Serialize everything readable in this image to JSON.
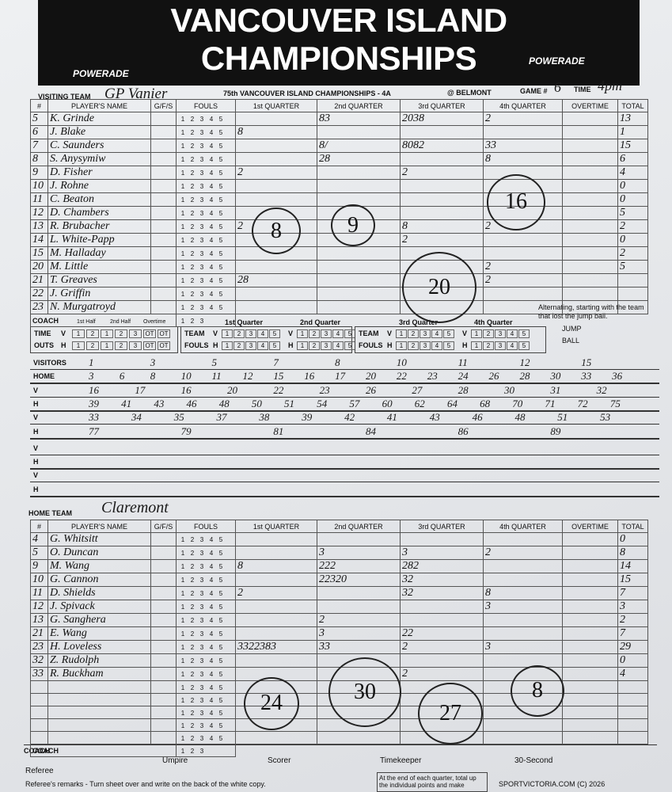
{
  "header": {
    "title_line1": "VANCOUVER ISLAND",
    "title_line2": "CHAMPIONSHIPS",
    "sponsor": "POWERADE"
  },
  "game": {
    "subtitle": "75th VANCOUVER ISLAND CHAMPIONSHIPS - 4A",
    "venue": "@ BELMONT",
    "game_label": "GAME #",
    "game_number": "6",
    "time_label": "TIME",
    "time": "4pm"
  },
  "columns": [
    "#",
    "PLAYER'S NAME",
    "G/F/S",
    "FOULS",
    "1st QUARTER",
    "2nd QUARTER",
    "3rd QUARTER",
    "4th QUARTER",
    "OVERTIME",
    "TOTAL"
  ],
  "foul_numbers": [
    "1",
    "2",
    "3",
    "4",
    "5"
  ],
  "coach_label": "COACH",
  "visiting": {
    "label": "VISITING TEAM",
    "team": "GP Vanier",
    "players": [
      {
        "number": "5",
        "name": "K. Grinde",
        "q2": "83",
        "q3": "2038",
        "q4": "2",
        "total": 13
      },
      {
        "number": "6",
        "name": "J. Blake",
        "q1": "8",
        "total": 1
      },
      {
        "number": "7",
        "name": "C. Saunders",
        "q2": "8/",
        "q3": "8082",
        "q4": "33",
        "total": 15
      },
      {
        "number": "8",
        "name": "S. Anysymiw",
        "q2": "28",
        "q4": "8",
        "total": 6
      },
      {
        "number": "9",
        "name": "D. Fisher",
        "q1": "2",
        "q3": "2",
        "total": 4
      },
      {
        "number": "10",
        "name": "J. Rohne",
        "total": 0
      },
      {
        "number": "11",
        "name": "C. Beaton",
        "total": 0
      },
      {
        "number": "12",
        "name": "D. Chambers",
        "total": 5
      },
      {
        "number": "13",
        "name": "R. Brubacher",
        "q1": "2",
        "q3": "8",
        "q4": "2",
        "total": 2
      },
      {
        "number": "14",
        "name": "L. White-Papp",
        "q3": "2",
        "total": 0
      },
      {
        "number": "15",
        "name": "M. Halladay",
        "total": 2
      },
      {
        "number": "20",
        "name": "M. Little",
        "q4": "2",
        "total": 5
      },
      {
        "number": "21",
        "name": "T. Greaves",
        "q1": "28",
        "q4": "2"
      },
      {
        "number": "22",
        "name": "J. Griffin"
      },
      {
        "number": "23",
        "name": "N. Murgatroyd"
      }
    ],
    "quarter_totals": [
      8,
      9,
      20,
      16
    ]
  },
  "timeouts": {
    "label_top": "TIME",
    "label_bottom": "OUTS",
    "periods": [
      "1st Half",
      "2nd Half",
      "Overtime"
    ],
    "teams": [
      "V",
      "H"
    ],
    "slots": [
      "1",
      "2",
      "1",
      "2",
      "3",
      "OT",
      "OT"
    ]
  },
  "team_fouls": {
    "label_top": "TEAM",
    "label_bottom": "FOULS",
    "quarters": [
      "1st Quarter",
      "2nd Quarter",
      "3rd Quarter",
      "4th Quarter"
    ],
    "teams": [
      "V",
      "H"
    ]
  },
  "jump_ball": {
    "note": "Alternating, starting with the team that lost the jump ball.",
    "label_top": "JUMP",
    "label_bottom": "BALL"
  },
  "running_score": [
    {
      "label": "VISITORS",
      "entries": [
        "1",
        "3",
        "5",
        "7",
        "8",
        "10",
        "11",
        "12",
        "15"
      ]
    },
    {
      "label": "HOME",
      "entries": [
        "3",
        "6",
        "8",
        "10",
        "11",
        "12",
        "15",
        "16",
        "17",
        "20",
        "22",
        "23",
        "24",
        "26",
        "28",
        "30",
        "33",
        "36"
      ]
    },
    {
      "label": "V",
      "entries": [
        "16",
        "17",
        "16",
        "20",
        "22",
        "23",
        "26",
        "27",
        "28",
        "30",
        "31",
        "32"
      ]
    },
    {
      "label": "H",
      "entries": [
        "39",
        "41",
        "43",
        "46",
        "48",
        "50",
        "51",
        "54",
        "57",
        "60",
        "62",
        "64",
        "68",
        "70",
        "71",
        "72",
        "75"
      ]
    },
    {
      "label": "V",
      "entries": [
        "33",
        "34",
        "35",
        "37",
        "38",
        "39",
        "42",
        "41",
        "43",
        "46",
        "48",
        "51",
        "53"
      ]
    },
    {
      "label": "H",
      "entries": [
        "77",
        "79",
        "81",
        "84",
        "86",
        "89"
      ]
    },
    {
      "label": "V",
      "entries": []
    },
    {
      "label": "H",
      "entries": []
    },
    {
      "label": "V",
      "entries": []
    },
    {
      "label": "H",
      "entries": []
    }
  ],
  "home": {
    "label": "HOME TEAM",
    "team": "Claremont",
    "players": [
      {
        "number": "4",
        "name": "G. Whitsitt",
        "total": 0
      },
      {
        "number": "5",
        "name": "O. Duncan",
        "q2": "3",
        "q3": "3",
        "q4": "2",
        "total": 8
      },
      {
        "number": "9",
        "name": "M. Wang",
        "q1": "8",
        "q2": "222",
        "q3": "282",
        "total": 14
      },
      {
        "number": "10",
        "name": "G. Cannon",
        "q2": "22320",
        "q3": "32",
        "total": 15
      },
      {
        "number": "11",
        "name": "D. Shields",
        "q1": "2",
        "q3": "32",
        "q4": "8",
        "total": 7
      },
      {
        "number": "12",
        "name": "J. Spivack",
        "q4": "3",
        "total": 3
      },
      {
        "number": "13",
        "name": "G. Sanghera",
        "q2": "2",
        "total": 2
      },
      {
        "number": "21",
        "name": "E. Wang",
        "q2": "3",
        "q3": "22",
        "total": 7
      },
      {
        "number": "23",
        "name": "H. Loveless",
        "q1": "3322383",
        "q2": "33",
        "q3": "2",
        "q4": "3",
        "total": 29
      },
      {
        "number": "32",
        "name": "Z. Rudolph",
        "total": 0
      },
      {
        "number": "33",
        "name": "R. Buckham",
        "q3": "2",
        "total": 4
      }
    ],
    "quarter_totals": [
      24,
      30,
      27,
      8
    ]
  },
  "footer": {
    "referee": "Referee",
    "umpire": "Umpire",
    "scorer": "Scorer",
    "timekeeper": "Timekeeper",
    "thirty_second": "30-Second",
    "remarks": "Referee's remarks - Turn sheet over and write on the back of the white copy.",
    "box_note": "At the end of each quarter, total up the individual points and make",
    "copyright": "SPORTVICTORIA.COM (C) 2026"
  }
}
